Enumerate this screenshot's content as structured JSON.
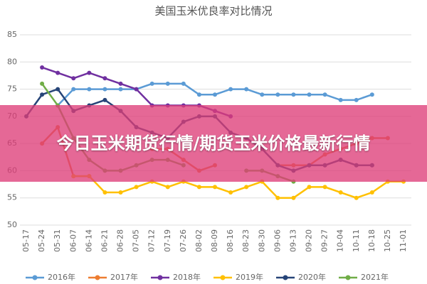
{
  "chart_data": {
    "type": "line",
    "title": "美国玉米优良率对比情况",
    "annotations": [
      "今日玉米期货行情/期货玉米价格最新行情"
    ],
    "categories": [
      "05-17",
      "05-24",
      "05-31",
      "06-07",
      "06-14",
      "06-21",
      "06-28",
      "07-05",
      "07-12",
      "07-19",
      "07-26",
      "08-02",
      "08-09",
      "08-16",
      "08-23",
      "08-30",
      "09-06",
      "09-13",
      "09-20",
      "09-27",
      "10-04",
      "10-11",
      "10-18",
      "10-25",
      "11-01"
    ],
    "ylim": [
      50,
      85
    ],
    "yticks": [
      50,
      55,
      60,
      65,
      70,
      75,
      80,
      85
    ],
    "grid": true,
    "legend": "bottom",
    "series": [
      {
        "name": "2016年",
        "color": "#5b9bd5",
        "values": [
          null,
          null,
          72,
          75,
          75,
          75,
          75,
          75,
          76,
          76,
          76,
          74,
          74,
          75,
          75,
          74,
          74,
          74,
          74,
          74,
          73,
          73,
          74,
          null,
          null
        ]
      },
      {
        "name": "2017年",
        "color": "#ed7d31",
        "values": [
          null,
          65,
          68,
          59,
          59,
          null,
          null,
          null,
          64,
          64,
          62,
          60,
          61,
          null,
          null,
          null,
          61,
          61,
          61,
          63,
          64,
          65,
          66,
          66,
          null
        ]
      },
      {
        "name": "2018年",
        "color": "#7030a0",
        "values": [
          null,
          79,
          78,
          77,
          78,
          77,
          76,
          75,
          72,
          72,
          72,
          72,
          71,
          70,
          null,
          null,
          null,
          null,
          61,
          61,
          62,
          61,
          61,
          null,
          null
        ]
      },
      {
        "name": "2019年",
        "color": "#ffc000",
        "values": [
          null,
          null,
          null,
          59,
          59,
          56,
          56,
          57,
          58,
          57,
          58,
          57,
          57,
          56,
          57,
          58,
          55,
          55,
          57,
          57,
          56,
          55,
          56,
          58,
          58
        ]
      },
      {
        "name": "2020年",
        "color": "#264478",
        "values": [
          70,
          74,
          75,
          71,
          72,
          73,
          71,
          68,
          67,
          66,
          69,
          70,
          70,
          67,
          66,
          64,
          61,
          60,
          61,
          61,
          62,
          61,
          61,
          null,
          null
        ]
      },
      {
        "name": "2021年",
        "color": "#70ad47",
        "values": [
          null,
          76,
          72,
          66,
          62,
          60,
          60,
          61,
          62,
          62,
          61,
          null,
          null,
          null,
          60,
          60,
          59,
          58,
          null,
          null,
          null,
          null,
          null,
          null,
          null
        ]
      }
    ]
  }
}
